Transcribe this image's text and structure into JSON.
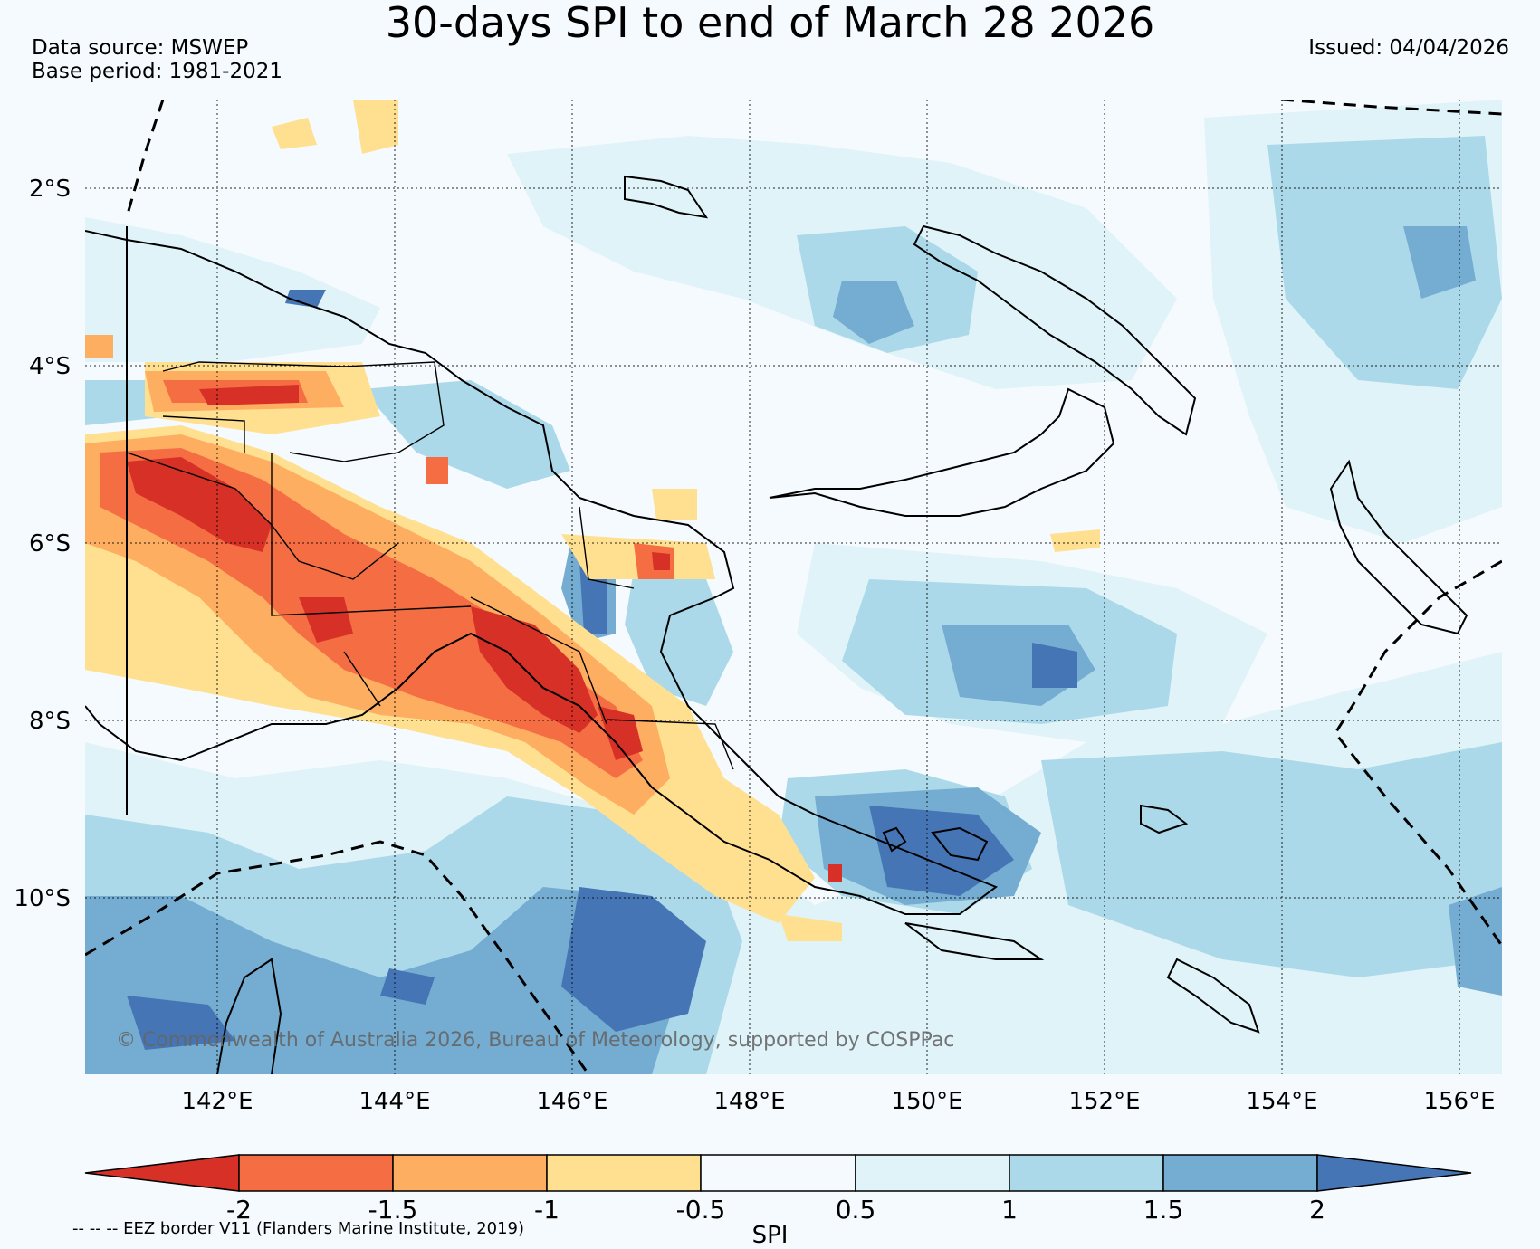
{
  "header": {
    "title": "30-days SPI to end of March 28 2026",
    "data_source": "Data source: MSWEP",
    "base_period": "Base period: 1981-2021",
    "issued": "Issued: 04/04/2026"
  },
  "map": {
    "lon_range": [
      140.6,
      156.6
    ],
    "lat_range": [
      -11.98,
      -1.0
    ],
    "lat_labels": [
      "2°S",
      "4°S",
      "6°S",
      "8°S",
      "10°S"
    ],
    "lat_values": [
      -2,
      -4,
      -6,
      -8,
      -10
    ],
    "lon_labels": [
      "142°E",
      "144°E",
      "146°E",
      "148°E",
      "150°E",
      "152°E",
      "154°E",
      "156°E"
    ],
    "lon_values": [
      142,
      144,
      146,
      148,
      150,
      152,
      154,
      156
    ],
    "copyright": "© Commonwealth of Australia 2026, Bureau of Meteorology, supported by COSPPac",
    "colors": {
      "below_-2": "#d73027",
      "-2_-1.5": "#f46d43",
      "-1.5_-1": "#fdae61",
      "-1_-0.5": "#fee090",
      "-0.5_0.5": "#f4fafd",
      "0.5_1": "#e0f3f8",
      "1_1.5": "#abd9e9",
      "1.5_2": "#74add1",
      "above_2": "#4575b4"
    }
  },
  "colorbar": {
    "label": "SPI",
    "ticks": [
      "-2",
      "-1.5",
      "-1",
      "-0.5",
      "0.5",
      "1",
      "1.5",
      "2"
    ],
    "colors": [
      "#d73027",
      "#f46d43",
      "#fdae61",
      "#fee090",
      "#f4fafd",
      "#e0f3f8",
      "#abd9e9",
      "#74add1",
      "#4575b4"
    ]
  },
  "legend": {
    "eez_note": "-- -- -- EEZ border V11 (Flanders Marine Institute, 2019)"
  }
}
